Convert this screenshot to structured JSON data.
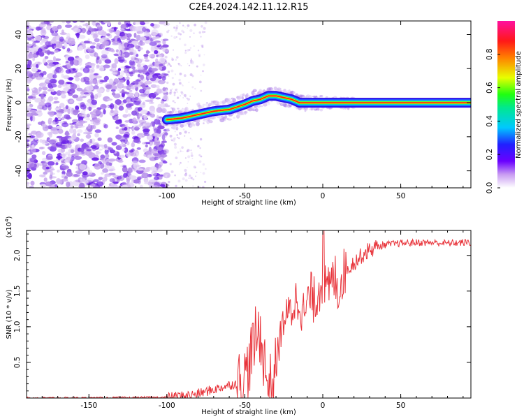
{
  "title": "C2E4.2024.142.11.12.R15",
  "chart_data": [
    {
      "type": "heatmap",
      "title": "C2E4.2024.142.11.12.R15",
      "xlabel": "Height of straight line (km)",
      "ylabel": "Frequency (Hz)",
      "xlim": [
        -190,
        95
      ],
      "ylim": [
        -50,
        48
      ],
      "x_ticks": [
        -150,
        -100,
        -50,
        0,
        50
      ],
      "y_ticks": [
        -40,
        -20,
        0,
        20,
        40
      ],
      "noise_region_x": [
        -190,
        -100
      ],
      "ridge": {
        "x": [
          -100,
          -90,
          -80,
          -70,
          -60,
          -50,
          -45,
          -40,
          -35,
          -30,
          -25,
          -20,
          -15,
          -10,
          -5,
          0,
          5,
          10,
          20,
          50,
          95
        ],
        "y": [
          -10,
          -9,
          -7,
          -5,
          -4,
          -1,
          1,
          2,
          4,
          4,
          3,
          2,
          0,
          0,
          0,
          0,
          0,
          0,
          0,
          0,
          0
        ]
      },
      "colorbar": {
        "label": "Normalized spectral amplitude",
        "range": [
          0,
          1
        ],
        "ticks": [
          0.0,
          0.2,
          0.4,
          0.6,
          0.8
        ]
      }
    },
    {
      "type": "line",
      "xlabel": "Height of straight line (km)",
      "ylabel": "SNR (10 * v/v)",
      "scale_note": "(x10",
      "scale_exp": "4",
      "scale_close": ")",
      "xlim": [
        -190,
        95
      ],
      "ylim": [
        0,
        23500
      ],
      "x_ticks": [
        -150,
        -100,
        -50,
        0,
        50
      ],
      "y_ticks": [
        0.5,
        1.0,
        1.5,
        2.0
      ],
      "series": [
        {
          "color": "#e8333a",
          "x": [
            -190,
            -150,
            -120,
            -100,
            -95,
            -90,
            -85,
            -80,
            -75,
            -70,
            -65,
            -60,
            -55,
            -50,
            -47,
            -45,
            -43,
            -40,
            -38,
            -35,
            -32,
            -30,
            -27,
            -25,
            -22,
            -20,
            -18,
            -15,
            -12,
            -10,
            -8,
            -5,
            -3,
            0,
            3,
            5,
            8,
            10,
            13,
            15,
            20,
            25,
            30,
            35,
            40,
            50,
            60,
            70,
            80,
            90,
            95
          ],
          "y": [
            0,
            0,
            50,
            100,
            200,
            300,
            400,
            600,
            900,
            1200,
            1500,
            1800,
            2100,
            3000,
            5000,
            7000,
            8500,
            9000,
            6000,
            1500,
            2500,
            4500,
            9000,
            11000,
            12000,
            12500,
            13500,
            14000,
            11500,
            13000,
            14500,
            13500,
            15000,
            16500,
            14500,
            16000,
            17000,
            15000,
            17500,
            18000,
            19000,
            20000,
            20800,
            21200,
            21500,
            21700,
            21800,
            21800,
            21700,
            21800,
            21800
          ]
        }
      ]
    }
  ]
}
